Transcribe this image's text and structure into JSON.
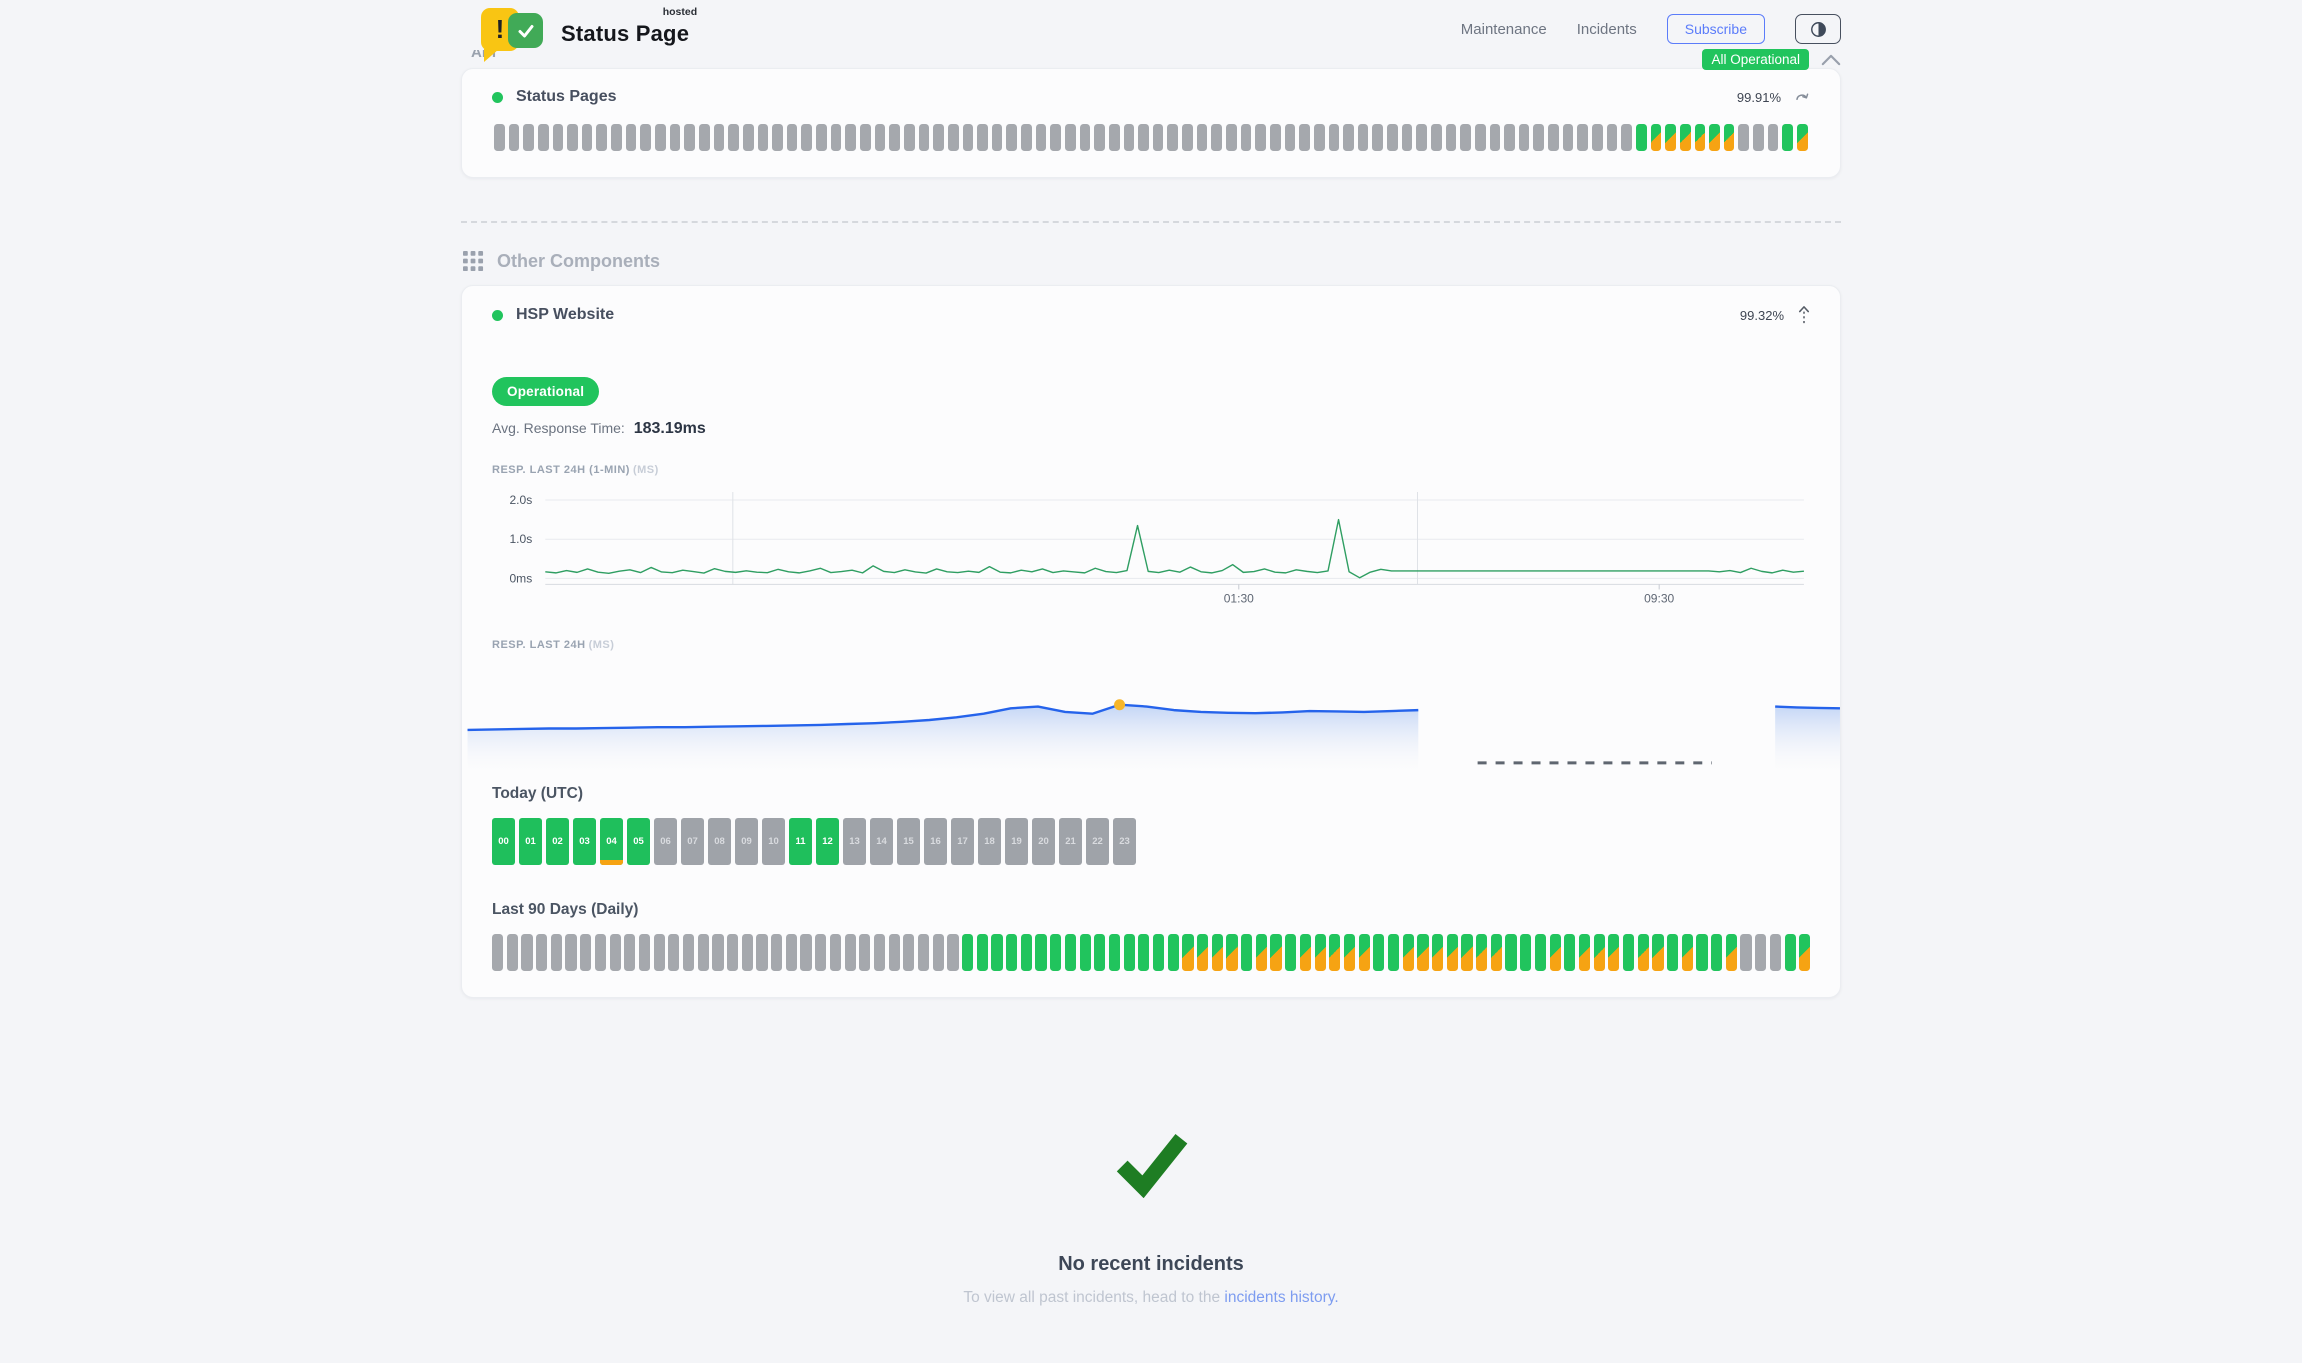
{
  "colors": {
    "green": "#21c45d",
    "orange": "#f6a313",
    "gray_bar": "#a5a8ad",
    "accent_blue": "#5b7cfa",
    "chart_line_green": "#2f9e62",
    "chart_line_blue": "#2563eb",
    "marker_yellow": "#f6b62a",
    "link_blue": "#7d9cf0",
    "check_green": "#1e7d23",
    "logo_yellow": "#f9c513",
    "logo_green": "#41aa57"
  },
  "header": {
    "brand": {
      "name": "Status Page",
      "tagline": "hosted"
    },
    "nav": [
      {
        "label": "Maintenance"
      },
      {
        "label": "Incidents"
      }
    ],
    "subscribe_label": "Subscribe",
    "overall_status": "All Operational"
  },
  "api_section": {
    "title": "API",
    "component": {
      "name": "Status Pages",
      "uptime_percent": "99.91%"
    }
  },
  "other_components": {
    "title": "Other Components",
    "component": {
      "name": "HSP Website",
      "uptime_percent": "99.32%",
      "status_label": "Operational",
      "avg_response_label": "Avg. Response Time:",
      "avg_response_value": "183.19ms",
      "chart1_label": "RESP. LAST 24H (1-MIN)",
      "chart1_unit": "(MS)",
      "chart2_label": "RESP. LAST 24H",
      "chart2_unit": "(MS)",
      "today_title": "Today (UTC)",
      "last90_title": "Last 90 Days (Daily)"
    }
  },
  "incidents": {
    "title": "No recent incidents",
    "subtitle_prefix": "To view all past incidents, head to the ",
    "link_label": "incidents history."
  },
  "chart_data": [
    {
      "id": "resp_24h_1min",
      "type": "line",
      "title": "RESP. LAST 24H (1-MIN)",
      "unit": "ms",
      "y_ticks": [
        "2.0s",
        "1.0s",
        "0ms"
      ],
      "ylim_ms": [
        0,
        2150
      ],
      "x_tick_labels": [
        "01:30",
        "09:30"
      ],
      "x_tick_pos_pct": [
        55.1,
        88.5
      ],
      "v_gridline_pos_pct": [
        14.9,
        69.3
      ],
      "line_color": "#2f9e62",
      "notes": "noisy ~130-350ms baseline, spikes to ~1350ms and ~1500ms, flat ~190ms segment from ~67% to ~92%, noisy again at end",
      "points_ms": [
        170,
        140,
        200,
        155,
        240,
        160,
        130,
        185,
        220,
        150,
        280,
        165,
        145,
        210,
        175,
        135,
        250,
        180,
        155,
        195,
        160,
        145,
        230,
        170,
        140,
        190,
        260,
        150,
        175,
        210,
        140,
        320,
        180,
        150,
        220,
        165,
        135,
        240,
        170,
        150,
        185,
        155,
        300,
        160,
        140,
        210,
        170,
        240,
        150,
        190,
        165,
        140,
        260,
        175,
        150,
        200,
        1350,
        180,
        150,
        210,
        160,
        290,
        170,
        140,
        200,
        350,
        155,
        175,
        240,
        160,
        140,
        220,
        180,
        150,
        190,
        1500,
        170,
        15,
        160,
        230,
        190,
        190,
        190,
        190,
        190,
        190,
        190,
        190,
        190,
        190,
        190,
        190,
        190,
        190,
        190,
        190,
        190,
        190,
        190,
        190,
        190,
        190,
        190,
        190,
        190,
        190,
        190,
        190,
        190,
        190,
        190,
        170,
        200,
        150,
        260,
        180,
        140,
        210,
        160,
        185
      ]
    },
    {
      "id": "resp_24h_avg",
      "type": "area",
      "title": "RESP. LAST 24H",
      "unit": "ms",
      "line_color": "#2563eb",
      "segment1": {
        "x_start_pct": 0.4,
        "x_end_pct": 69.4,
        "values_ms": [
          200,
          201,
          202,
          203,
          203,
          204,
          205,
          206,
          206,
          207,
          208,
          209,
          210,
          211,
          213,
          215,
          218,
          222,
          228,
          236,
          248,
          252,
          240,
          236,
          256,
          252,
          244,
          240,
          238,
          237,
          239,
          242,
          241,
          240,
          242,
          244
        ],
        "marker_index": 24,
        "marker_value_ms": 256,
        "marker_color": "#f6b62a"
      },
      "gap_dashed_line": {
        "x_start_pct": 73.7,
        "x_end_pct": 90.7,
        "color": "#5f6670",
        "meaning": "no data"
      },
      "segment2": {
        "x_start_pct": 95.3,
        "x_end_pct": 100,
        "values_ms": [
          252,
          250,
          249,
          248
        ]
      }
    },
    {
      "id": "uptime_90",
      "type": "heatmap",
      "title": "Status Pages uptime bars (90 units)",
      "legend": {
        "e": "no data (gray)",
        "g": "operational (green)",
        "s": "partial degradation (green/orange split)"
      },
      "codes": "eeeeeeeeeeeeeeeeeeeeeeeeeeeeeeeeeeeeeeeeeeeeeeeeeeeeeeeeeeeeeeeeeeeeeeeeeeeeeegsssssseeegs"
    },
    {
      "id": "today_utc",
      "type": "heatmap",
      "title": "Today (UTC)",
      "hours": [
        {
          "label": "00",
          "state": "up"
        },
        {
          "label": "01",
          "state": "up"
        },
        {
          "label": "02",
          "state": "up"
        },
        {
          "label": "03",
          "state": "up"
        },
        {
          "label": "04",
          "state": "up",
          "partial": true
        },
        {
          "label": "05",
          "state": "up"
        },
        {
          "label": "06",
          "state": "na"
        },
        {
          "label": "07",
          "state": "na"
        },
        {
          "label": "08",
          "state": "na"
        },
        {
          "label": "09",
          "state": "na"
        },
        {
          "label": "10",
          "state": "na"
        },
        {
          "label": "11",
          "state": "up"
        },
        {
          "label": "12",
          "state": "up"
        },
        {
          "label": "13",
          "state": "na"
        },
        {
          "label": "14",
          "state": "na"
        },
        {
          "label": "15",
          "state": "na"
        },
        {
          "label": "16",
          "state": "na"
        },
        {
          "label": "17",
          "state": "na"
        },
        {
          "label": "18",
          "state": "na"
        },
        {
          "label": "19",
          "state": "na"
        },
        {
          "label": "20",
          "state": "na"
        },
        {
          "label": "21",
          "state": "na"
        },
        {
          "label": "22",
          "state": "na"
        },
        {
          "label": "23",
          "state": "na"
        }
      ]
    },
    {
      "id": "last_90_days",
      "type": "heatmap",
      "title": "Last 90 Days (Daily)",
      "legend": {
        "e": "no data (gray)",
        "g": "operational (green)",
        "s": "partial degradation (green/orange split)"
      },
      "codes": "eeeeeeeeeeeeeeeeeeeeeeeeeeeeeeeegggggggggggggggssssgssgsssssggsssssssgggsgsssgssgsggseeegs"
    }
  ]
}
